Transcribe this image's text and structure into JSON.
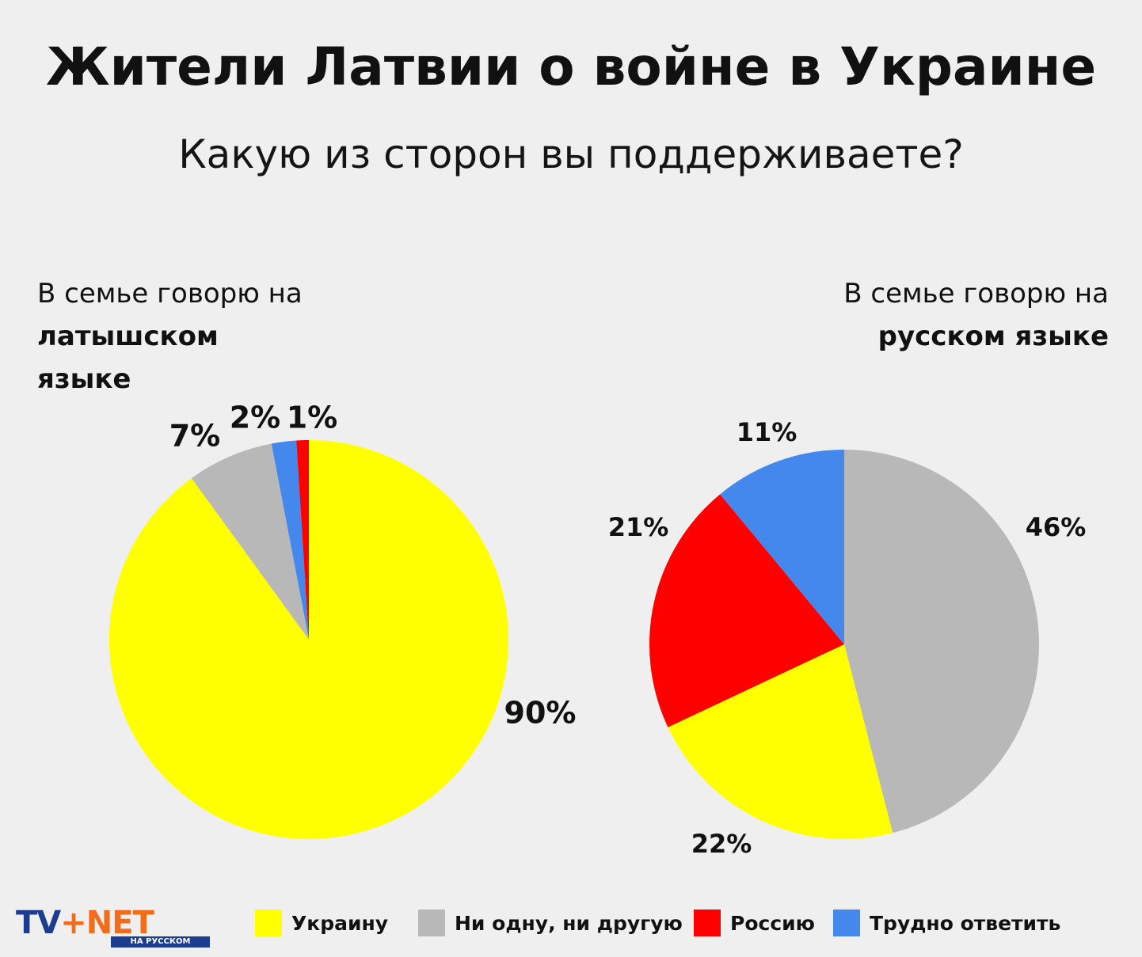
{
  "title": "Жители Латвии о войне в Украине",
  "subtitle": "Какую из сторон вы поддерживаете?",
  "captions": {
    "left": {
      "line1": "В семье говорю на",
      "bold1": "латышском",
      "bold2": "языке"
    },
    "right": {
      "line1": "В семье говорю на",
      "bold1": "русском языке"
    }
  },
  "colors": {
    "ukraine": "#ffff00",
    "neither": "#b8b8b8",
    "russia": "#ff0000",
    "hard": "#4488ee"
  },
  "legend": [
    {
      "key": "ukraine",
      "label": "Украину"
    },
    {
      "key": "neither",
      "label": "Ни одну, ни другую"
    },
    {
      "key": "russia",
      "label": "Россию"
    },
    {
      "key": "hard",
      "label": "Трудно ответить"
    }
  ],
  "logo": {
    "tv": "TV",
    "plus": "+",
    "net": "NET",
    "sub": "НА РУССКОМ"
  },
  "chart_data": [
    {
      "type": "pie",
      "title": "В семье говорю на латышском языке",
      "categories": [
        "Украину",
        "Ни одну, ни другую",
        "Трудно ответить",
        "Россию"
      ],
      "keys": [
        "ukraine",
        "neither",
        "hard",
        "russia"
      ],
      "values": [
        90,
        7,
        2,
        1
      ],
      "labels": [
        "90%",
        "7%",
        "2%",
        "1%"
      ]
    },
    {
      "type": "pie",
      "title": "В семье говорю на русском языке",
      "categories": [
        "Ни одну, ни другую",
        "Украину",
        "Россию",
        "Трудно ответить"
      ],
      "keys": [
        "neither",
        "ukraine",
        "russia",
        "hard"
      ],
      "values": [
        46,
        22,
        21,
        11
      ],
      "labels": [
        "46%",
        "22%",
        "21%",
        "11%"
      ]
    }
  ]
}
